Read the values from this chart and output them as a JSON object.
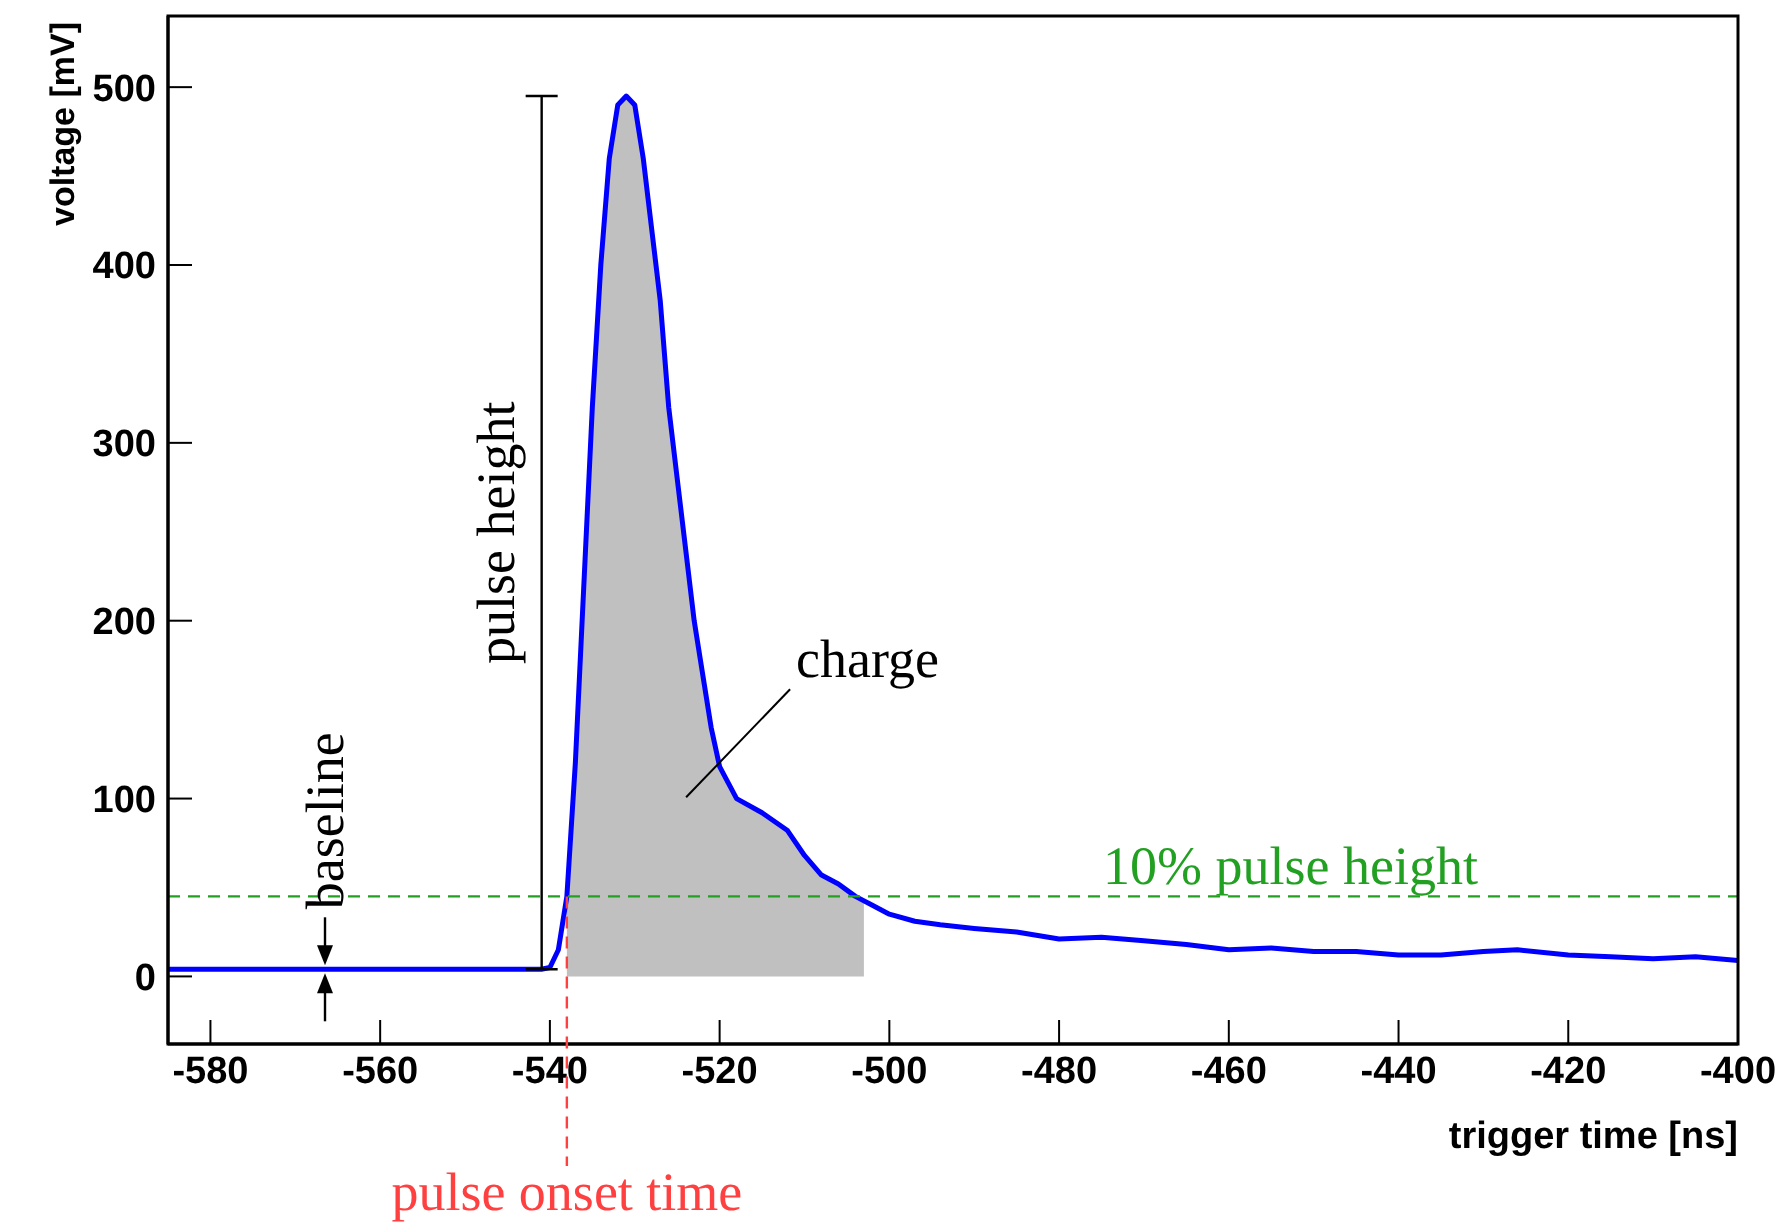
{
  "chart_data": {
    "type": "line",
    "xlabel": "trigger time [ns]",
    "ylabel": "voltage [mV]",
    "xlim": [
      -585,
      -400
    ],
    "ylim": [
      -38,
      540
    ],
    "xticks": [
      -580,
      -560,
      -540,
      -520,
      -500,
      -480,
      -460,
      -440,
      -420,
      -400
    ],
    "yticks": [
      0,
      100,
      200,
      300,
      400,
      500
    ],
    "grid": false,
    "legend": false,
    "marker": "none",
    "line_style": "solid",
    "series": [
      {
        "type": "area",
        "color": "#c0c0c0",
        "x": [
          -538,
          -537,
          -536,
          -535,
          -534,
          -533,
          -532,
          -531,
          -530,
          -529,
          -528,
          -527,
          -526,
          -525,
          -524,
          -523,
          -522,
          -521,
          -520,
          -518,
          -515,
          -512,
          -510,
          -508,
          -506,
          -504,
          -503
        ],
        "values": [
          45,
          120,
          220,
          320,
          400,
          460,
          490,
          495,
          490,
          460,
          420,
          380,
          320,
          280,
          240,
          200,
          170,
          140,
          118,
          100,
          92,
          82,
          68,
          57,
          52,
          45,
          42
        ]
      },
      {
        "type": "line",
        "color": "#0000ff",
        "x": [
          -585,
          -575,
          -565,
          -555,
          -545,
          -541,
          -540,
          -539,
          -538,
          -537,
          -536,
          -535,
          -534,
          -533,
          -532,
          -531,
          -530,
          -529,
          -528,
          -527,
          -526,
          -525,
          -524,
          -523,
          -522,
          -521,
          -520,
          -518,
          -515,
          -512,
          -510,
          -508,
          -506,
          -504,
          -502,
          -500,
          -497,
          -494,
          -490,
          -485,
          -480,
          -475,
          -470,
          -465,
          -460,
          -455,
          -450,
          -445,
          -440,
          -435,
          -430,
          -426,
          -420,
          -415,
          -410,
          -405,
          -400
        ],
        "values": [
          4,
          4,
          4,
          4,
          4,
          4,
          5,
          15,
          45,
          120,
          220,
          320,
          400,
          460,
          490,
          495,
          490,
          460,
          420,
          380,
          320,
          280,
          240,
          200,
          170,
          140,
          118,
          100,
          92,
          82,
          68,
          57,
          52,
          45,
          40,
          35,
          31,
          29,
          27,
          25,
          21,
          22,
          20,
          18,
          15,
          16,
          14,
          14,
          12,
          12,
          14,
          15,
          12,
          11,
          10,
          11,
          9
        ]
      }
    ],
    "ref_lines": [
      {
        "axis": "y",
        "value": 45,
        "label": "10% pulse height",
        "color": "#22a022",
        "line_style": "dashed"
      },
      {
        "axis": "x",
        "value": -538,
        "label": "pulse onset time",
        "color": "#ff4040",
        "line_style": "dashed"
      }
    ],
    "annotations": [
      "pulse height",
      "baseline",
      "charge"
    ]
  }
}
